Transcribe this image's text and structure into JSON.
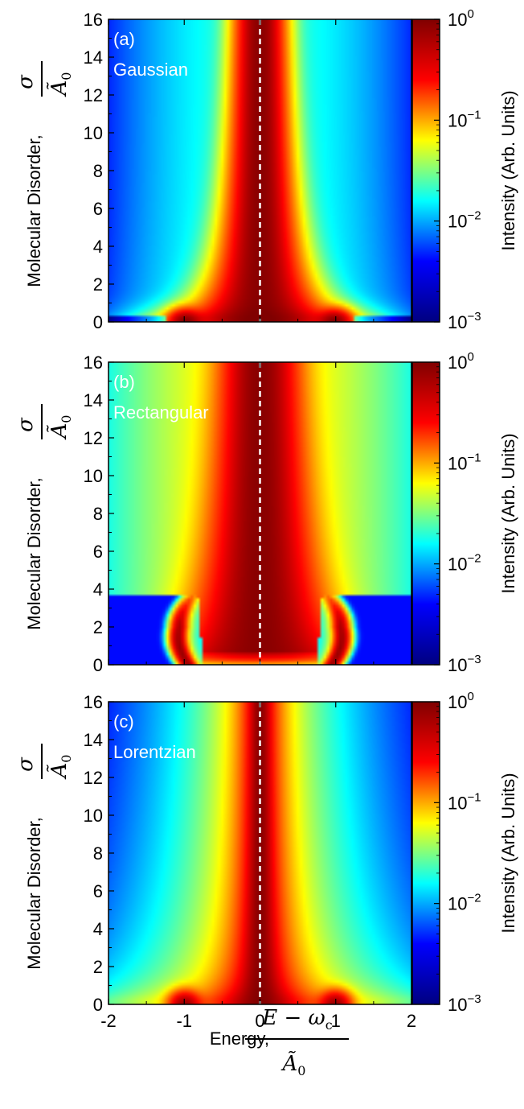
{
  "chart_data": [
    {
      "type": "heatmap",
      "panel_label": "(a)",
      "distribution": "Gaussian",
      "xlim": [
        -2,
        2
      ],
      "ylim": [
        0,
        16
      ],
      "x_ticks": [
        "-2",
        "-1",
        "0",
        "1",
        "2"
      ],
      "y_ticks": [
        "0",
        "2",
        "4",
        "6",
        "8",
        "10",
        "12",
        "14",
        "16"
      ],
      "ylabel_text": "Molecular Disorder,",
      "ylabel_frac_num": "σ",
      "ylabel_frac_den": "Ã",
      "ylabel_frac_den_sub": "0",
      "colorbar": {
        "scale": "log",
        "range": [
          0.001,
          1
        ],
        "label": "Intensity (Arb. Units)"
      },
      "center_line_x": 0,
      "peak_energies_at_low_disorder": [
        -1,
        1
      ]
    },
    {
      "type": "heatmap",
      "panel_label": "(b)",
      "distribution": "Rectangular",
      "xlim": [
        -2,
        2
      ],
      "ylim": [
        0,
        16
      ],
      "x_ticks": [
        "-2",
        "-1",
        "0",
        "1",
        "2"
      ],
      "y_ticks": [
        "0",
        "2",
        "4",
        "6",
        "8",
        "10",
        "12",
        "14",
        "16"
      ],
      "ylabel_text": "Molecular Disorder,",
      "ylabel_frac_num": "σ",
      "ylabel_frac_den": "Ã",
      "ylabel_frac_den_sub": "0",
      "colorbar": {
        "scale": "log",
        "range": [
          0.001,
          1
        ],
        "label": "Intensity (Arb. Units)"
      },
      "center_line_x": 0,
      "peak_energies_at_low_disorder": [
        -1,
        1
      ]
    },
    {
      "type": "heatmap",
      "panel_label": "(c)",
      "distribution": "Lorentzian",
      "xlim": [
        -2,
        2
      ],
      "ylim": [
        0,
        16
      ],
      "x_ticks": [
        "-2",
        "-1",
        "0",
        "1",
        "2"
      ],
      "y_ticks": [
        "0",
        "2",
        "4",
        "6",
        "8",
        "10",
        "12",
        "14",
        "16"
      ],
      "ylabel_text": "Molecular Disorder,",
      "ylabel_frac_num": "σ",
      "ylabel_frac_den": "Ã",
      "ylabel_frac_den_sub": "0",
      "colorbar": {
        "scale": "log",
        "range": [
          0.001,
          1
        ],
        "label": "Intensity (Arb. Units)"
      },
      "center_line_x": 0,
      "peak_energies_at_low_disorder": [
        -1,
        1
      ]
    }
  ],
  "xaxis": {
    "label_text": "Energy,",
    "frac_num": "E − ω",
    "frac_num_sub": "c",
    "frac_den": "Ã",
    "frac_den_sub": "0"
  },
  "colorbar_tick_base": "10",
  "colorbar_tick_exponents": [
    "0",
    "−1",
    "−2",
    "−3"
  ],
  "colorbar_tick_values": [
    1,
    0.1,
    0.01,
    0.001
  ],
  "colors": {
    "jet_stops": [
      "#000080",
      "#0000ff",
      "#00ffff",
      "#ffff00",
      "#ff0000",
      "#800000"
    ],
    "center_line": "#ffffff",
    "panel_text": "#ffffff"
  }
}
